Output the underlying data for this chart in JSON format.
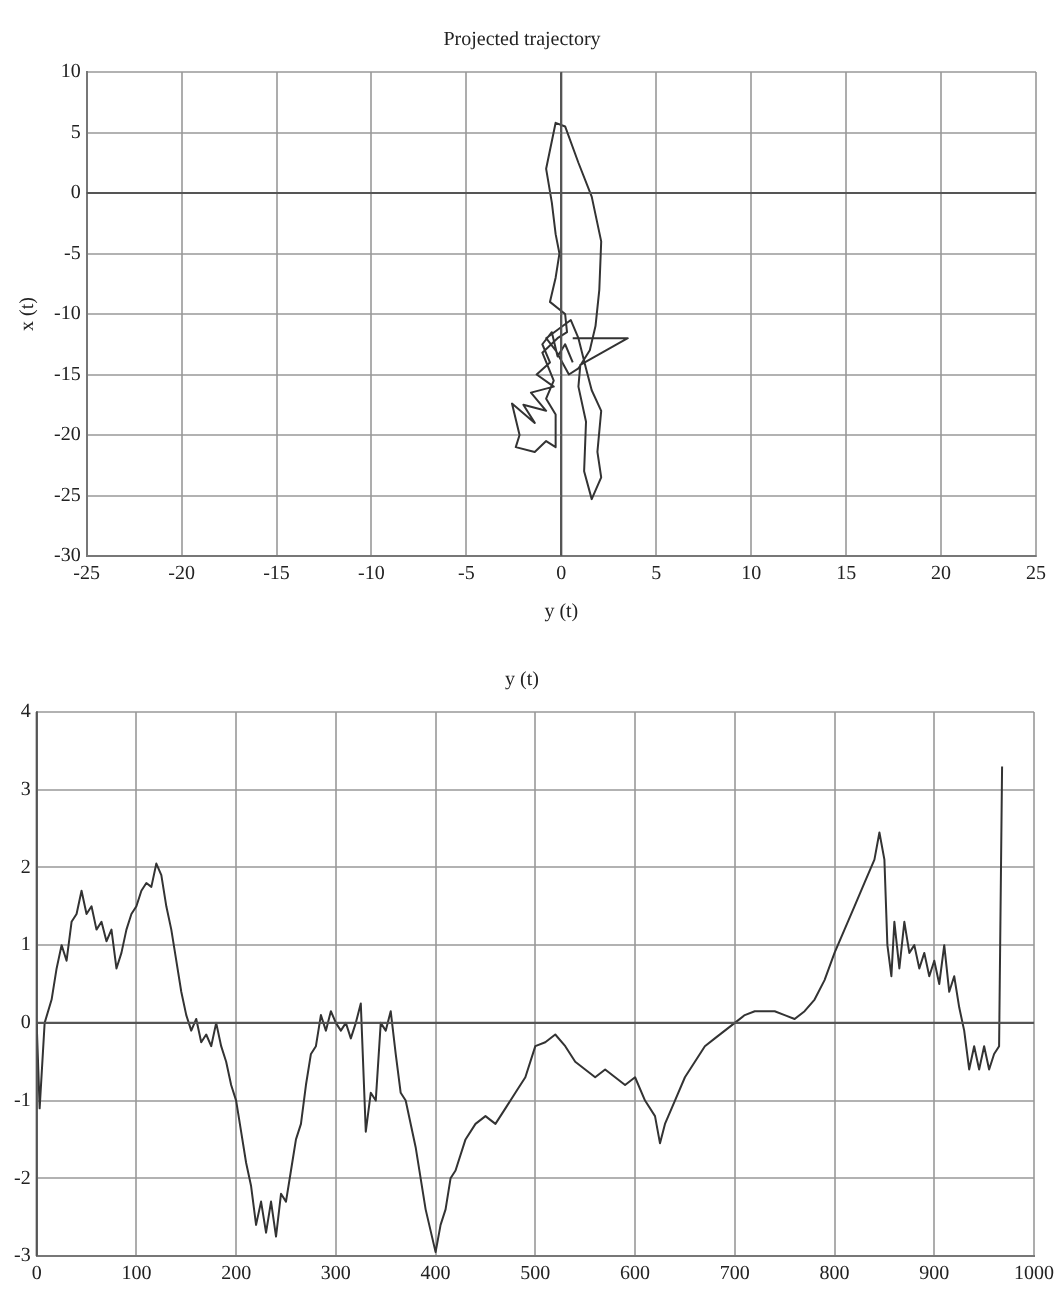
{
  "chart_data": [
    {
      "type": "line",
      "title": "Projected trajectory",
      "xlabel": "y (t)",
      "ylabel": "x (t)",
      "xlim": [
        -25,
        25
      ],
      "ylim": [
        -30,
        10
      ],
      "xticks": [
        -25,
        -20,
        -15,
        -10,
        -5,
        0,
        5,
        10,
        15,
        20,
        25
      ],
      "yticks": [
        -30,
        -25,
        -20,
        -15,
        -10,
        -5,
        0,
        5,
        10
      ],
      "grid": true,
      "marker": "none",
      "line_style": "solid",
      "series": [
        {
          "color": "#333333",
          "x": [
            0.6,
            0.2,
            -0.2,
            -0.5,
            -1.0,
            -0.6,
            -1.3,
            -0.4,
            -1.6,
            -0.8,
            -2.0,
            -1.4,
            -2.6,
            -2.2,
            -2.4,
            -1.4,
            -0.8,
            -0.3,
            -0.3,
            -0.8,
            -0.4,
            -1.0,
            -0.2,
            0.3,
            0.2,
            -0.6,
            -0.3,
            -0.1,
            -0.3,
            -0.5,
            -0.8,
            -0.3,
            0.2,
            0.9,
            1.6,
            2.1,
            2.0,
            1.8,
            1.5,
            0.9,
            0.4,
            -0.3,
            -0.8,
            0.5,
            0.9,
            1.3,
            1.6,
            2.1,
            1.9,
            2.1,
            1.6,
            1.2,
            1.3,
            0.9,
            1.0,
            3.5,
            0.6
          ],
          "values": [
            -14,
            -12.5,
            -13.5,
            -11.5,
            -12.5,
            -14,
            -15,
            -16,
            -16.5,
            -18,
            -17.5,
            -19,
            -17.4,
            -20,
            -21,
            -21.4,
            -20.5,
            -21,
            -18.3,
            -17,
            -15.5,
            -13.2,
            -12,
            -11.5,
            -10,
            -9,
            -7,
            -5,
            -3.4,
            -0.8,
            2,
            5.8,
            5.5,
            2.5,
            -0.3,
            -4,
            -8,
            -11,
            -13,
            -14.5,
            -15,
            -13,
            -12,
            -10.5,
            -12,
            -14.5,
            -16.3,
            -18,
            -21.4,
            -23.5,
            -25.3,
            -23,
            -18.9,
            -16,
            -14.2,
            -12,
            -12
          ]
        }
      ]
    },
    {
      "type": "line",
      "title": "y (t)",
      "xlim": [
        0,
        1000
      ],
      "ylim": [
        -3,
        4
      ],
      "xticks": [
        0,
        100,
        200,
        300,
        400,
        500,
        600,
        700,
        800,
        900,
        1000
      ],
      "yticks": [
        -3,
        -2,
        -1,
        0,
        1,
        2,
        3,
        4
      ],
      "grid": true,
      "marker": "none",
      "line_style": "solid",
      "series": [
        {
          "color": "#333333",
          "x": [
            0,
            3,
            8,
            15,
            20,
            25,
            30,
            35,
            40,
            45,
            50,
            55,
            60,
            65,
            70,
            75,
            80,
            85,
            90,
            95,
            100,
            105,
            110,
            115,
            120,
            125,
            130,
            135,
            140,
            145,
            150,
            155,
            160,
            165,
            170,
            175,
            180,
            185,
            190,
            195,
            200,
            205,
            210,
            215,
            220,
            225,
            230,
            235,
            240,
            245,
            250,
            255,
            260,
            265,
            270,
            275,
            280,
            285,
            290,
            295,
            300,
            305,
            310,
            315,
            320,
            325,
            330,
            335,
            340,
            345,
            350,
            355,
            360,
            365,
            370,
            380,
            390,
            400,
            405,
            410,
            415,
            420,
            430,
            440,
            450,
            460,
            470,
            480,
            490,
            500,
            510,
            520,
            530,
            540,
            550,
            560,
            570,
            580,
            590,
            600,
            610,
            620,
            625,
            630,
            640,
            650,
            660,
            670,
            680,
            690,
            700,
            710,
            720,
            730,
            740,
            750,
            760,
            770,
            780,
            790,
            800,
            810,
            820,
            830,
            840,
            845,
            850,
            853,
            857,
            860,
            865,
            870,
            875,
            880,
            885,
            890,
            895,
            900,
            905,
            910,
            915,
            920,
            925,
            930,
            935,
            940,
            945,
            950,
            955,
            960,
            965,
            968
          ],
          "values": [
            0,
            -1.1,
            0,
            0.3,
            0.7,
            1.0,
            0.8,
            1.3,
            1.4,
            1.7,
            1.4,
            1.5,
            1.2,
            1.3,
            1.05,
            1.2,
            0.7,
            0.9,
            1.2,
            1.4,
            1.5,
            1.7,
            1.8,
            1.75,
            2.05,
            1.9,
            1.5,
            1.2,
            0.8,
            0.4,
            0.1,
            -0.1,
            0.05,
            -0.25,
            -0.15,
            -0.3,
            0,
            -0.3,
            -0.5,
            -0.8,
            -1.0,
            -1.4,
            -1.8,
            -2.1,
            -2.6,
            -2.3,
            -2.7,
            -2.3,
            -2.75,
            -2.2,
            -2.3,
            -1.9,
            -1.5,
            -1.3,
            -0.8,
            -0.4,
            -0.3,
            0.1,
            -0.1,
            0.15,
            0,
            -0.1,
            0,
            -0.2,
            0,
            0.25,
            -1.4,
            -0.9,
            -1.0,
            0,
            -0.1,
            0.15,
            -0.4,
            -0.9,
            -1.0,
            -1.6,
            -2.4,
            -2.95,
            -2.6,
            -2.4,
            -2.0,
            -1.9,
            -1.5,
            -1.3,
            -1.2,
            -1.3,
            -1.1,
            -0.9,
            -0.7,
            -0.3,
            -0.25,
            -0.15,
            -0.3,
            -0.5,
            -0.6,
            -0.7,
            -0.6,
            -0.7,
            -0.8,
            -0.7,
            -1.0,
            -1.2,
            -1.55,
            -1.3,
            -1.0,
            -0.7,
            -0.5,
            -0.3,
            -0.2,
            -0.1,
            0,
            0.1,
            0.15,
            0.15,
            0.15,
            0.1,
            0.05,
            0.15,
            0.3,
            0.55,
            0.9,
            1.2,
            1.5,
            1.8,
            2.1,
            2.45,
            2.1,
            1.0,
            0.6,
            1.3,
            0.7,
            1.3,
            0.9,
            1.0,
            0.7,
            0.9,
            0.6,
            0.8,
            0.5,
            1.0,
            0.4,
            0.6,
            0.2,
            -0.1,
            -0.6,
            -0.3,
            -0.6,
            -0.3,
            -0.6,
            -0.4,
            -0.3,
            3.3
          ]
        }
      ]
    }
  ]
}
